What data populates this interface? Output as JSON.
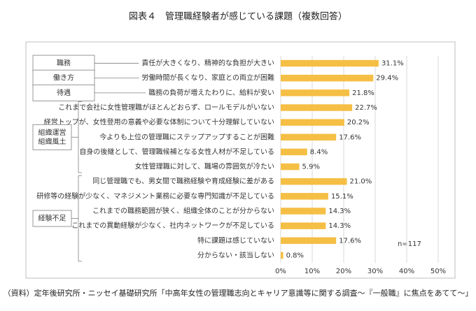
{
  "chart_data": {
    "type": "bar",
    "orientation": "horizontal",
    "title": "図表４　管理職経験者が感じている課題（複数回答）",
    "categories": [
      "責任が大きくなり、精神的な負担が大きい",
      "労働時間が長くなり、家庭との両立が困難",
      "職務の負荷が増えたわりに、給料が安い",
      "これまで会社に女性管理職がほとんどおらず、ロールモデルがいない",
      "経営トップが、女性登用の意義や必要な体制について十分理解していない",
      "今よりも上位の管理職にステップアップすることが困難",
      "自身の後継として、管理職候補となる女性人材が不足している",
      "女性管理職に対して、職場の雰囲気が冷たい",
      "同じ管理職でも、男女間で職務経験や育成経験に差がある",
      "研修等の経験が少なく、マネジメント業務に必要な専門知識が不足している",
      "これまでの職務範囲が狭く、組織全体のことが分からない",
      "これまでの異動経験が少なく、社内ネットワークが不足している",
      "特に課題は感じていない",
      "分からない・該当しない"
    ],
    "values": [
      31.1,
      29.4,
      21.8,
      22.7,
      20.2,
      17.6,
      8.4,
      5.9,
      21.0,
      15.1,
      14.3,
      14.3,
      17.6,
      0.8
    ],
    "value_labels": [
      "31.1%",
      "29.4%",
      "21.8%",
      "22.7%",
      "20.2%",
      "17.6%",
      "8.4%",
      "5.9%",
      "21.0%",
      "15.1%",
      "14.3%",
      "14.3%",
      "17.6%",
      "0.8%"
    ],
    "color": "#f5bf45",
    "groups": [
      [
        "職務"
      ],
      [
        "働き方"
      ],
      [
        "待遇"
      ],
      [
        "組織運営",
        "組織風土"
      ],
      [
        "経験不足"
      ]
    ],
    "xlim": [
      0,
      50
    ],
    "xticks": [
      {
        "value": 0,
        "label": "0%"
      },
      {
        "value": 10,
        "label": "10%"
      },
      {
        "value": 20,
        "label": "20%"
      },
      {
        "value": 30,
        "label": "30%"
      },
      {
        "value": 40,
        "label": "40%"
      },
      {
        "value": 50,
        "label": "50%"
      }
    ],
    "grid": true,
    "annotation": "n=117",
    "source": "（資料）定年後研究所・ニッセイ基礎研究所「中高年女性の管理職志向とキャリア意識等に関する調査～『一般職』に焦点をあてて～」"
  }
}
